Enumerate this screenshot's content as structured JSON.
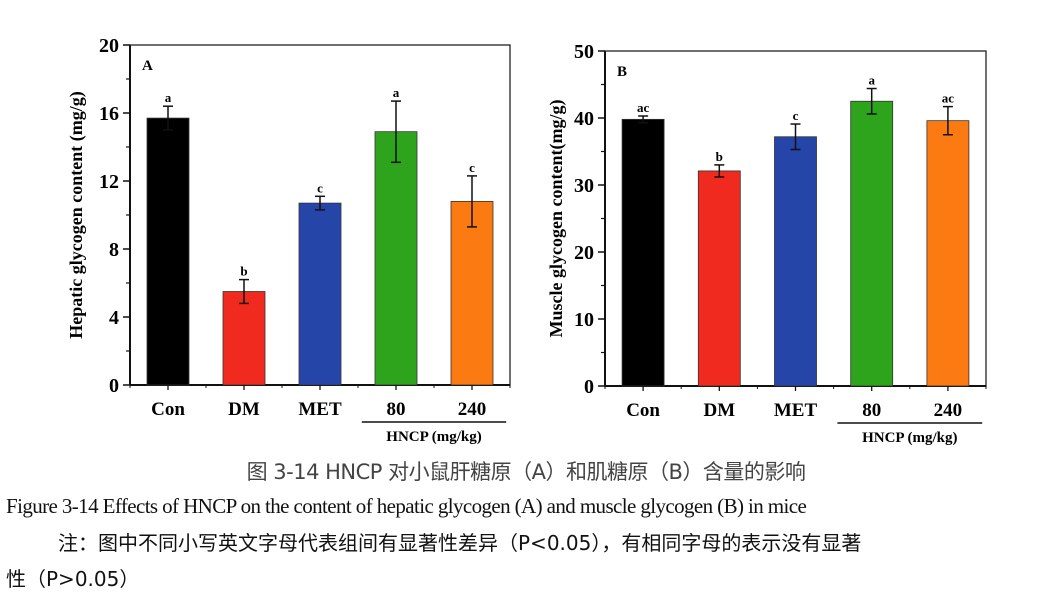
{
  "chart_data": [
    {
      "type": "bar",
      "panel_label": "A",
      "title": "",
      "xlabel": "",
      "ylabel": "Hepatic glycogen content (mg/g)",
      "ylim": [
        0,
        20
      ],
      "yticks": [
        0,
        4,
        8,
        12,
        16,
        20
      ],
      "categories": [
        "Con",
        "DM",
        "MET",
        "80",
        "240"
      ],
      "values": [
        15.7,
        5.5,
        10.7,
        14.9,
        10.8
      ],
      "errors": [
        0.7,
        0.7,
        0.4,
        1.8,
        1.5
      ],
      "significance_letters": [
        "a",
        "b",
        "c",
        "a",
        "c"
      ],
      "colors": [
        "#000000",
        "#f02a1e",
        "#2545a8",
        "#2ea31c",
        "#fb7a12"
      ],
      "group_label": "HNCP (mg/kg)",
      "group_categories": [
        "80",
        "240"
      ],
      "grid": false
    },
    {
      "type": "bar",
      "panel_label": "B",
      "title": "",
      "xlabel": "",
      "ylabel": "Muscle glycogen content(mg/g)",
      "ylim": [
        0,
        50
      ],
      "yticks": [
        0,
        10,
        20,
        30,
        40,
        50
      ],
      "categories": [
        "Con",
        "DM",
        "MET",
        "80",
        "240"
      ],
      "values": [
        39.8,
        32.1,
        37.2,
        42.5,
        39.6
      ],
      "errors": [
        0.5,
        0.9,
        1.9,
        1.9,
        2.1
      ],
      "significance_letters": [
        "ac",
        "b",
        "c",
        "a",
        "ac"
      ],
      "colors": [
        "#000000",
        "#f02a1e",
        "#2545a8",
        "#2ea31c",
        "#fb7a12"
      ],
      "group_label": "HNCP (mg/kg)",
      "group_categories": [
        "80",
        "240"
      ],
      "grid": false
    }
  ],
  "captions": {
    "chinese": "图 3-14 HNCP 对小鼠肝糖原（A）和肌糖原（B）含量的影响",
    "english": "Figure 3-14 Effects of HNCP on the content of hepatic glycogen (A) and muscle glycogen (B) in mice",
    "note_line1": "注：图中不同小写英文字母代表组间有显著性差异（P<0.05），有相同字母的表示没有显著",
    "note_line2": "性（P>0.05）"
  }
}
